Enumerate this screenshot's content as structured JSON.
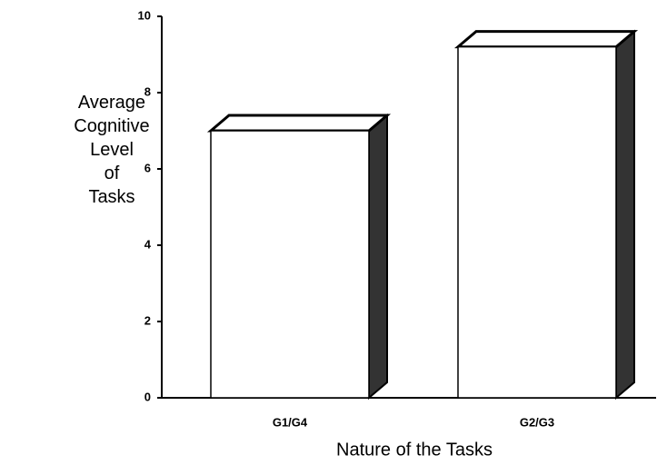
{
  "chart_data": {
    "type": "bar3d",
    "y_label": "Average Cognitive Level of Tasks",
    "x_label": "Nature of the Tasks",
    "categories": [
      "G1/G4",
      "G2/G3"
    ],
    "values": [
      7.0,
      9.2
    ],
    "ylim": [
      0,
      10
    ],
    "yticks": [
      0,
      2,
      4,
      6,
      8,
      10
    ],
    "grid": false,
    "color": "#ffffff"
  }
}
